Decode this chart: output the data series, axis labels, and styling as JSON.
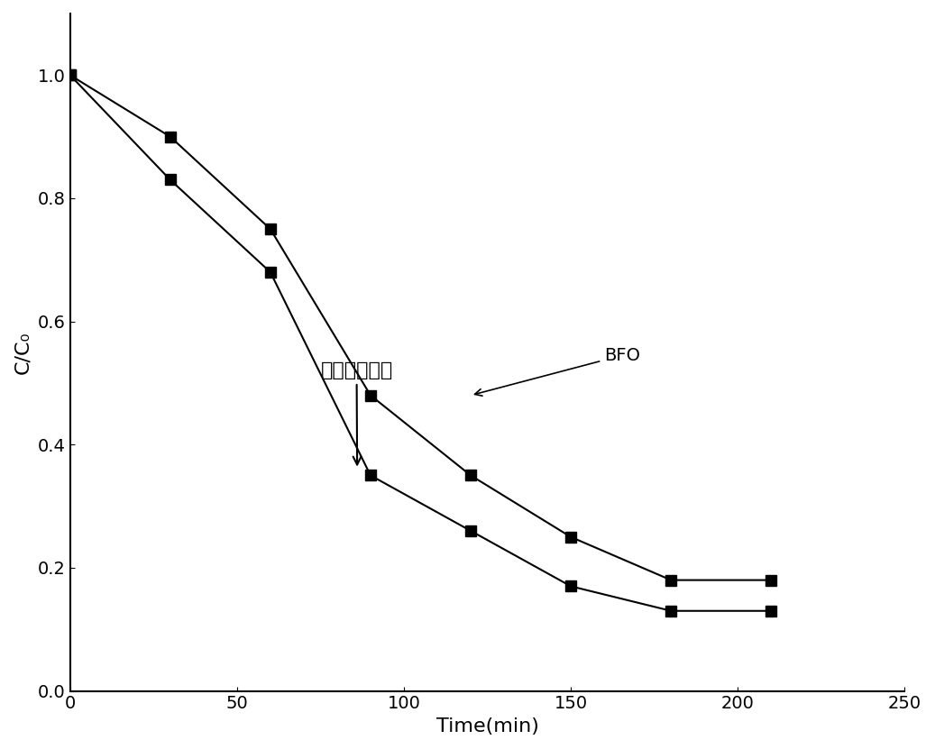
{
  "bfo_x": [
    0,
    30,
    60,
    90,
    120,
    150,
    180,
    210
  ],
  "bfo_y": [
    1.0,
    0.9,
    0.75,
    0.48,
    0.35,
    0.25,
    0.18,
    0.18
  ],
  "composite_x": [
    0,
    30,
    60,
    90,
    120,
    150,
    180,
    210
  ],
  "composite_y": [
    1.0,
    0.83,
    0.68,
    0.35,
    0.26,
    0.17,
    0.13,
    0.13
  ],
  "xlabel": "Time(min)",
  "ylabel": "C/C₀",
  "xlim": [
    0,
    250
  ],
  "ylim": [
    0.0,
    1.1
  ],
  "xticks": [
    0,
    50,
    100,
    150,
    200,
    250
  ],
  "yticks": [
    0.0,
    0.2,
    0.4,
    0.6,
    0.8,
    1.0
  ],
  "bfo_label": "BFO",
  "composite_label": "复合光偃化剂",
  "line_color": "#000000",
  "marker": "s",
  "marker_size": 8,
  "linewidth": 1.5,
  "figsize": [
    10.37,
    8.31
  ],
  "dpi": 100
}
